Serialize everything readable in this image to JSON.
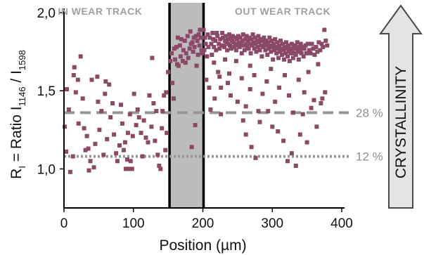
{
  "chart_data": {
    "type": "scatter",
    "title": "",
    "xlabel": "Position (µm)",
    "ylabel_parts": [
      "R",
      "I",
      " = Ratio I",
      "1146",
      " / I",
      "1598"
    ],
    "xlim": [
      0,
      400
    ],
    "ylim": [
      0.75,
      2.0
    ],
    "x_ticks": [
      0,
      100,
      200,
      300,
      400
    ],
    "x_tick_labels": [
      "0",
      "100",
      "200",
      "300",
      "400"
    ],
    "y_ticks": [
      1.0,
      1.5,
      2.0
    ],
    "y_tick_labels": [
      "1,0",
      "1,5",
      "2,0"
    ],
    "grid": false,
    "marker_color": "#8a4a66",
    "wear_track": {
      "x_start": 152,
      "x_end": 201,
      "fill_color": "#bcbcbc",
      "edge_color": "#000000"
    },
    "regions": [
      {
        "label": "IN WEAR TRACK",
        "x_center": 52
      },
      {
        "label": "OUT WEAR TRACK",
        "x_center": 315
      }
    ],
    "reference_lines": [
      {
        "y": 1.36,
        "label": "28 %",
        "style": "dashed",
        "color": "#969696"
      },
      {
        "y": 1.08,
        "label": "12 %",
        "style": "dotted",
        "color": "#969696"
      }
    ],
    "arrow": {
      "label": "CRYSTALLINITY",
      "direction": "up",
      "fill": "#e4e4e4",
      "stroke": "#4a4a4a"
    },
    "points": [
      [
        1,
        1.27
      ],
      [
        3,
        1.11
      ],
      [
        4,
        1.51
      ],
      [
        7,
        1.38
      ],
      [
        9,
        0.98
      ],
      [
        13,
        1.08
      ],
      [
        14,
        1.6
      ],
      [
        15,
        1.65
      ],
      [
        17,
        1.49
      ],
      [
        20,
        1.57
      ],
      [
        21,
        1.29
      ],
      [
        24,
        1.72
      ],
      [
        27,
        1.45
      ],
      [
        29,
        1.26
      ],
      [
        31,
        1.12
      ],
      [
        33,
        1.21
      ],
      [
        35,
        1.13
      ],
      [
        36,
        0.99
      ],
      [
        38,
        1.05
      ],
      [
        40,
        1.57
      ],
      [
        43,
        1.01
      ],
      [
        45,
        1.16
      ],
      [
        48,
        1.59
      ],
      [
        49,
        1.43
      ],
      [
        51,
        1.25
      ],
      [
        54,
        1.37
      ],
      [
        57,
        1.09
      ],
      [
        59,
        1.48
      ],
      [
        60,
        1.56
      ],
      [
        62,
        1.19
      ],
      [
        65,
        1.54
      ],
      [
        67,
        1.33
      ],
      [
        70,
        1.42
      ],
      [
        72,
        1.22
      ],
      [
        75,
        1.1
      ],
      [
        77,
        1.05
      ],
      [
        80,
        1.15
      ],
      [
        82,
        1.41
      ],
      [
        84,
        1.29
      ],
      [
        86,
        1.12
      ],
      [
        88,
        1.17
      ],
      [
        89,
        1.0
      ],
      [
        91,
        1.06
      ],
      [
        92,
        1.23
      ],
      [
        93,
        1.0
      ],
      [
        95,
        1.35
      ],
      [
        96,
        1.05
      ],
      [
        98,
        1.0
      ],
      [
        99,
        1.21
      ],
      [
        101,
        1.48
      ],
      [
        104,
        1.28
      ],
      [
        106,
        1.38
      ],
      [
        108,
        1.33
      ],
      [
        111,
        1.23
      ],
      [
        113,
        1.08
      ],
      [
        115,
        1.31
      ],
      [
        118,
        1.2
      ],
      [
        121,
        1.17
      ],
      [
        123,
        1.47
      ],
      [
        126,
        1.27
      ],
      [
        127,
        1.71
      ],
      [
        129,
        1.42
      ],
      [
        131,
        1.18
      ],
      [
        133,
        1.37
      ],
      [
        135,
        1.09
      ],
      [
        137,
        1.02
      ],
      [
        139,
        1.0
      ],
      [
        141,
        1.26
      ],
      [
        142,
        1.37
      ],
      [
        144,
        1.47
      ],
      [
        146,
        1.12
      ],
      [
        147,
        1.49
      ],
      [
        148,
        1.23
      ],
      [
        150,
        1.62
      ],
      [
        153,
        1.69
      ],
      [
        155,
        1.74
      ],
      [
        156,
        1.55
      ],
      [
        158,
        1.45
      ],
      [
        159,
        1.77
      ],
      [
        160,
        1.7
      ],
      [
        162,
        1.78
      ],
      [
        163,
        1.67
      ],
      [
        164,
        1.84
      ],
      [
        165,
        1.66
      ],
      [
        167,
        1.79
      ],
      [
        168,
        1.72
      ],
      [
        169,
        1.83
      ],
      [
        171,
        1.69
      ],
      [
        172,
        1.76
      ],
      [
        174,
        1.82
      ],
      [
        175,
        1.68
      ],
      [
        176,
        1.74
      ],
      [
        178,
        1.85
      ],
      [
        179,
        1.71
      ],
      [
        181,
        1.77
      ],
      [
        182,
        1.88
      ],
      [
        183,
        1.8
      ],
      [
        184,
        1.14
      ],
      [
        185,
        1.81
      ],
      [
        186,
        1.75
      ],
      [
        187,
        1.84
      ],
      [
        188,
        1.78
      ],
      [
        189,
        1.28
      ],
      [
        190,
        1.85
      ],
      [
        191,
        1.66
      ],
      [
        192,
        1.82
      ],
      [
        193,
        1.73
      ],
      [
        194,
        1.86
      ],
      [
        195,
        1.79
      ],
      [
        196,
        1.89
      ],
      [
        197,
        1.84
      ],
      [
        198,
        1.76
      ],
      [
        199,
        1.74
      ],
      [
        201,
        1.89
      ],
      [
        202,
        1.76
      ],
      [
        203,
        1.84
      ],
      [
        204,
        1.8
      ],
      [
        205,
        1.57
      ],
      [
        206,
        1.72
      ],
      [
        207,
        1.86
      ],
      [
        208,
        1.78
      ],
      [
        209,
        1.52
      ],
      [
        210,
        1.84
      ],
      [
        211,
        1.38
      ],
      [
        212,
        1.8
      ],
      [
        213,
        1.73
      ],
      [
        214,
        1.87
      ],
      [
        215,
        1.83
      ],
      [
        216,
        1.78
      ],
      [
        217,
        1.45
      ],
      [
        218,
        1.82
      ],
      [
        219,
        1.76
      ],
      [
        220,
        1.87
      ],
      [
        221,
        1.85
      ],
      [
        222,
        1.62
      ],
      [
        223,
        1.8
      ],
      [
        224,
        1.77
      ],
      [
        225,
        1.83
      ],
      [
        226,
        1.35
      ],
      [
        227,
        1.79
      ],
      [
        228,
        1.87
      ],
      [
        229,
        1.84
      ],
      [
        230,
        1.79
      ],
      [
        231,
        1.78
      ],
      [
        232,
        1.82
      ],
      [
        233,
        1.85
      ],
      [
        234,
        1.81
      ],
      [
        235,
        1.76
      ],
      [
        236,
        1.83
      ],
      [
        237,
        1.8
      ],
      [
        238,
        1.86
      ],
      [
        239,
        1.79
      ],
      [
        240,
        1.84
      ],
      [
        241,
        1.77
      ],
      [
        242,
        1.82
      ],
      [
        243,
        1.85
      ],
      [
        244,
        1.81
      ],
      [
        245,
        1.78
      ],
      [
        246,
        1.84
      ],
      [
        247,
        1.8
      ],
      [
        248,
        1.76
      ],
      [
        249,
        1.83
      ],
      [
        250,
        1.79
      ],
      [
        251,
        1.85
      ],
      [
        252,
        1.81
      ],
      [
        253,
        1.78
      ],
      [
        254,
        1.84
      ],
      [
        255,
        1.8
      ],
      [
        256,
        1.74
      ],
      [
        257,
        1.82
      ],
      [
        258,
        1.86
      ],
      [
        259,
        1.79
      ],
      [
        260,
        1.76
      ],
      [
        261,
        1.83
      ],
      [
        262,
        1.8
      ],
      [
        263,
        1.85
      ],
      [
        264,
        1.78
      ],
      [
        265,
        1.82
      ],
      [
        266,
        1.77
      ],
      [
        267,
        1.84
      ],
      [
        268,
        1.8
      ],
      [
        269,
        1.74
      ],
      [
        270,
        1.83
      ],
      [
        271,
        1.79
      ],
      [
        272,
        1.86
      ],
      [
        273,
        1.81
      ],
      [
        274,
        1.77
      ],
      [
        275,
        1.84
      ],
      [
        276,
        1.8
      ],
      [
        277,
        1.75
      ],
      [
        278,
        1.82
      ],
      [
        279,
        1.78
      ],
      [
        280,
        1.85
      ],
      [
        281,
        1.81
      ],
      [
        282,
        1.76
      ],
      [
        283,
        1.83
      ],
      [
        284,
        1.79
      ],
      [
        285,
        1.72
      ],
      [
        286,
        1.82
      ],
      [
        287,
        1.78
      ],
      [
        288,
        1.84
      ],
      [
        289,
        1.8
      ],
      [
        290,
        1.76
      ],
      [
        291,
        1.82
      ],
      [
        292,
        1.79
      ],
      [
        293,
        1.73
      ],
      [
        294,
        1.81
      ],
      [
        295,
        1.77
      ],
      [
        296,
        1.84
      ],
      [
        297,
        1.79
      ],
      [
        298,
        1.75
      ],
      [
        299,
        1.82
      ],
      [
        300,
        1.78
      ],
      [
        301,
        1.7
      ],
      [
        302,
        1.8
      ],
      [
        303,
        1.76
      ],
      [
        304,
        1.83
      ],
      [
        305,
        1.78
      ],
      [
        306,
        1.74
      ],
      [
        307,
        1.81
      ],
      [
        308,
        1.77
      ],
      [
        309,
        1.71
      ],
      [
        310,
        1.79
      ],
      [
        311,
        1.75
      ],
      [
        312,
        1.82
      ],
      [
        313,
        1.77
      ],
      [
        314,
        1.73
      ],
      [
        315,
        1.8
      ],
      [
        316,
        1.76
      ],
      [
        317,
        1.7
      ],
      [
        318,
        1.78
      ],
      [
        319,
        1.74
      ],
      [
        320,
        1.81
      ],
      [
        321,
        1.77
      ],
      [
        322,
        1.72
      ],
      [
        323,
        1.79
      ],
      [
        324,
        1.75
      ],
      [
        325,
        1.69
      ],
      [
        326,
        1.77
      ],
      [
        327,
        1.74
      ],
      [
        328,
        1.8
      ],
      [
        329,
        1.76
      ],
      [
        330,
        1.71
      ],
      [
        331,
        1.78
      ],
      [
        332,
        1.74
      ],
      [
        333,
        1.79
      ],
      [
        334,
        1.73
      ],
      [
        335,
        1.77
      ],
      [
        336,
        1.81
      ],
      [
        337,
        1.75
      ],
      [
        338,
        1.7
      ],
      [
        339,
        1.78
      ],
      [
        340,
        1.76
      ],
      [
        341,
        1.8
      ],
      [
        342,
        1.74
      ],
      [
        343,
        1.78
      ],
      [
        345,
        1.72
      ],
      [
        346,
        1.77
      ],
      [
        348,
        1.79
      ],
      [
        349,
        1.74
      ],
      [
        351,
        1.8
      ],
      [
        353,
        1.76
      ],
      [
        355,
        1.74
      ],
      [
        357,
        1.8
      ],
      [
        359,
        1.77
      ],
      [
        361,
        1.73
      ],
      [
        363,
        1.78
      ],
      [
        365,
        1.75
      ],
      [
        367,
        1.81
      ],
      [
        369,
        1.76
      ],
      [
        371,
        1.8
      ],
      [
        373,
        1.78
      ],
      [
        375,
        1.89
      ],
      [
        377,
        1.82
      ],
      [
        379,
        1.79
      ],
      [
        216,
        1.68
      ],
      [
        224,
        1.59
      ],
      [
        232,
        1.7
      ],
      [
        240,
        1.47
      ],
      [
        248,
        1.69
      ],
      [
        256,
        1.58
      ],
      [
        262,
        1.4
      ],
      [
        268,
        1.51
      ],
      [
        274,
        1.6
      ],
      [
        280,
        1.37
      ],
      [
        286,
        1.48
      ],
      [
        292,
        1.56
      ],
      [
        298,
        1.64
      ],
      [
        304,
        1.43
      ],
      [
        310,
        1.52
      ],
      [
        318,
        1.6
      ],
      [
        324,
        1.47
      ],
      [
        330,
        1.36
      ],
      [
        338,
        1.57
      ],
      [
        346,
        1.49
      ],
      [
        352,
        1.62
      ],
      [
        360,
        1.44
      ],
      [
        366,
        1.67
      ],
      [
        372,
        1.45
      ],
      [
        282,
        1.3
      ],
      [
        294,
        1.37
      ],
      [
        300,
        1.27
      ],
      [
        308,
        1.24
      ],
      [
        316,
        1.18
      ],
      [
        322,
        1.05
      ],
      [
        328,
        1.1
      ],
      [
        334,
        1.02
      ],
      [
        340,
        1.22
      ],
      [
        344,
        1.35
      ],
      [
        350,
        1.17
      ],
      [
        356,
        1.39
      ],
      [
        364,
        1.27
      ],
      [
        370,
        1.42
      ],
      [
        376,
        1.49
      ],
      [
        262,
        1.22
      ],
      [
        270,
        1.14
      ],
      [
        276,
        1.07
      ],
      [
        226,
        1.52
      ],
      [
        238,
        1.61
      ],
      [
        250,
        1.43
      ],
      [
        258,
        1.31
      ],
      [
        268,
        1.66
      ],
      [
        236,
        1.55
      ]
    ]
  }
}
